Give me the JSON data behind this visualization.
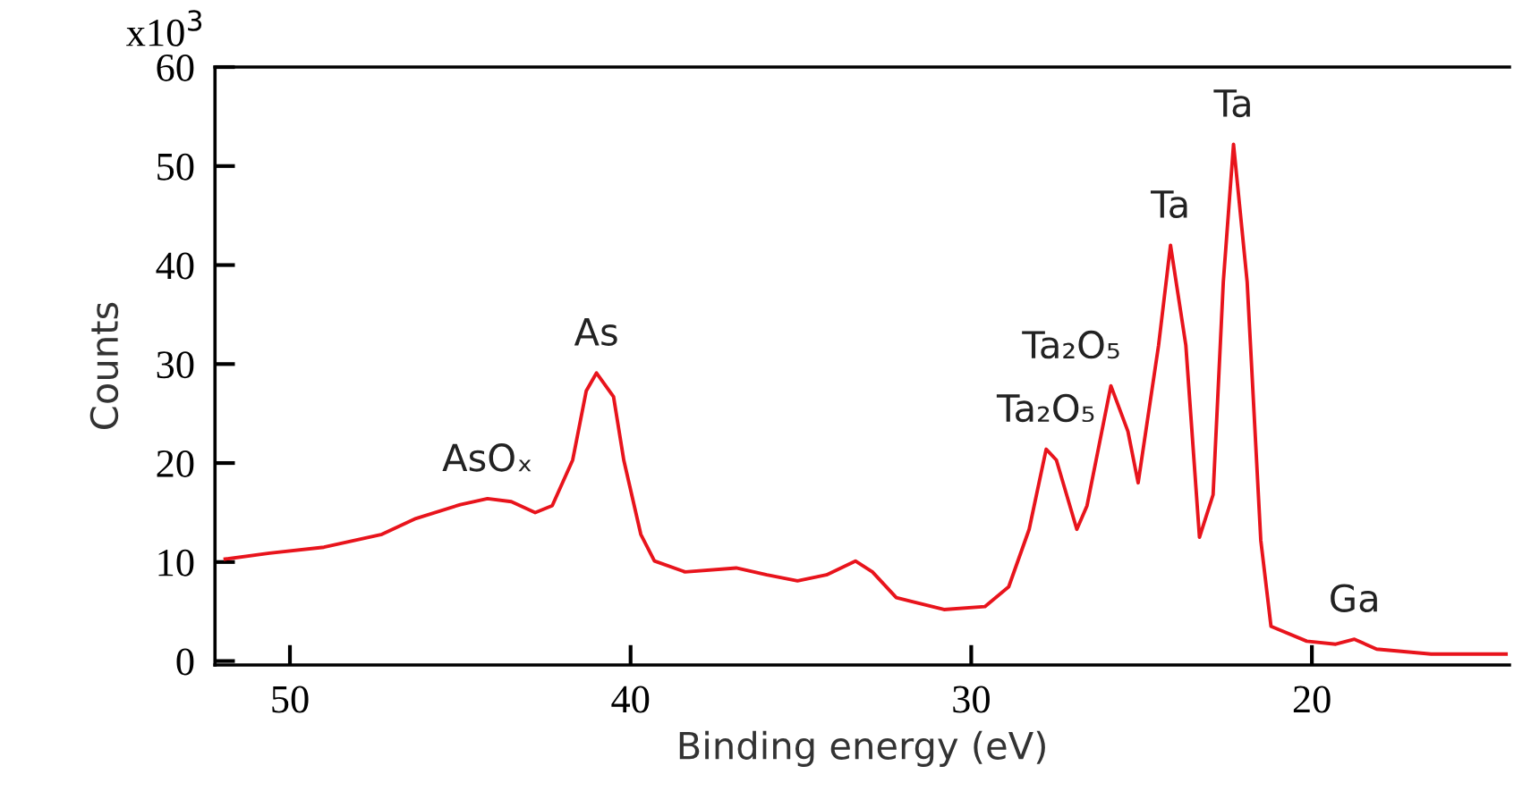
{
  "chart_data": {
    "type": "line",
    "xlabel": "Binding energy (eV)",
    "ylabel": "Counts",
    "x": [
      51.9,
      50.6,
      49.0,
      47.3,
      46.3,
      45.0,
      44.2,
      43.5,
      42.8,
      42.3,
      41.7,
      41.3,
      41.0,
      40.5,
      40.2,
      39.7,
      39.3,
      38.4,
      36.9,
      36.0,
      35.1,
      34.25,
      33.4,
      32.9,
      32.2,
      30.8,
      29.6,
      28.9,
      28.3,
      27.8,
      27.5,
      26.9,
      26.6,
      25.9,
      25.4,
      25.1,
      24.5,
      24.15,
      23.7,
      23.3,
      22.9,
      22.6,
      22.3,
      21.9,
      21.5,
      21.2,
      20.15,
      19.3,
      18.75,
      18.1,
      16.5,
      14.3
    ],
    "series": [
      {
        "color": "#e8141c",
        "values": [
          10.3,
          10.9,
          11.5,
          12.8,
          14.4,
          15.8,
          16.4,
          16.1,
          15.0,
          15.7,
          20.3,
          27.3,
          29.1,
          26.7,
          20.3,
          12.8,
          10.1,
          9.0,
          9.4,
          8.7,
          8.1,
          8.7,
          10.1,
          9.0,
          6.4,
          5.2,
          5.5,
          7.5,
          13.3,
          21.4,
          20.3,
          13.3,
          15.7,
          27.8,
          23.2,
          18.0,
          31.9,
          42.0,
          31.9,
          12.5,
          16.8,
          38.3,
          52.2,
          38.3,
          12.2,
          3.5,
          2.0,
          1.7,
          2.2,
          1.2,
          0.7,
          0.7
        ]
      }
    ],
    "xlim": [
      52.2,
      14.2
    ],
    "xticks": [
      50,
      40,
      30,
      20
    ],
    "ylim": [
      -0.4,
      60
    ],
    "yticks": [
      0,
      10,
      20,
      30,
      40,
      50,
      60
    ],
    "grid": false,
    "legend": false,
    "marker": "none",
    "line_style": "solid",
    "annotations": [
      "x10$^{3}$",
      {
        "text": "AsOₓ",
        "x": 44.2,
        "y": 16.4
      },
      {
        "text": "As",
        "x": 41.0,
        "y": 29.1
      },
      {
        "text": "Ta₂O₅",
        "x": 27.8,
        "y": 21.4
      },
      {
        "text": "Ta₂O₅",
        "x": 25.9,
        "y": 27.8
      },
      {
        "text": "Ta",
        "x": 24.15,
        "y": 42.0
      },
      {
        "text": "Ta",
        "x": 22.3,
        "y": 52.2
      },
      {
        "text": "Ga",
        "x": 18.75,
        "y": 2.2
      }
    ]
  }
}
